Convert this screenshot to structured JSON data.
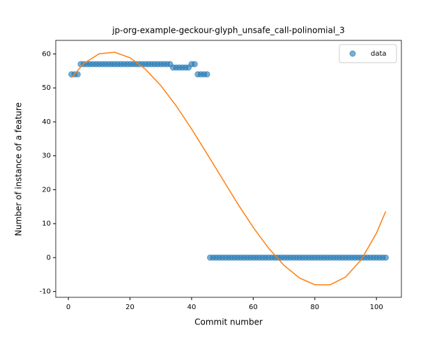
{
  "chart_data": {
    "type": "scatter",
    "title": "jp-org-example-geckour-glyph_unsafe_call-polinomial_3",
    "xlabel": "Commit number",
    "ylabel": "Number of instance of a feature",
    "xlim": [
      -4.1,
      108.1
    ],
    "ylim": [
      -11.7,
      64.0
    ],
    "xticks": [
      0,
      20,
      40,
      60,
      80,
      100
    ],
    "yticks": [
      -10,
      0,
      10,
      20,
      30,
      40,
      50,
      60
    ],
    "legend": "upper right",
    "series": [
      {
        "name": "data",
        "kind": "scatter",
        "color": "#1f77b4",
        "x": [
          1,
          2,
          3,
          4,
          5,
          6,
          7,
          8,
          9,
          10,
          11,
          12,
          13,
          14,
          15,
          16,
          17,
          18,
          19,
          20,
          21,
          22,
          23,
          24,
          25,
          26,
          27,
          28,
          29,
          30,
          31,
          32,
          33,
          34,
          35,
          36,
          37,
          38,
          39,
          40,
          41,
          42,
          43,
          44,
          45,
          46,
          47,
          48,
          49,
          50,
          51,
          52,
          53,
          54,
          55,
          56,
          57,
          58,
          59,
          60,
          61,
          62,
          63,
          64,
          65,
          66,
          67,
          68,
          69,
          70,
          71,
          72,
          73,
          74,
          75,
          76,
          77,
          78,
          79,
          80,
          81,
          82,
          83,
          84,
          85,
          86,
          87,
          88,
          89,
          90,
          91,
          92,
          93,
          94,
          95,
          96,
          97,
          98,
          99,
          100,
          101,
          102,
          103
        ],
        "values": [
          54,
          54,
          54,
          57,
          57,
          57,
          57,
          57,
          57,
          57,
          57,
          57,
          57,
          57,
          57,
          57,
          57,
          57,
          57,
          57,
          57,
          57,
          57,
          57,
          57,
          57,
          57,
          57,
          57,
          57,
          57,
          57,
          57,
          56,
          56,
          56,
          56,
          56,
          56,
          57,
          57,
          54,
          54,
          54,
          54,
          0,
          0,
          0,
          0,
          0,
          0,
          0,
          0,
          0,
          0,
          0,
          0,
          0,
          0,
          0,
          0,
          0,
          0,
          0,
          0,
          0,
          0,
          0,
          0,
          0,
          0,
          0,
          0,
          0,
          0,
          0,
          0,
          0,
          0,
          0,
          0,
          0,
          0,
          0,
          0,
          0,
          0,
          0,
          0,
          0,
          0,
          0,
          0,
          0,
          0,
          0,
          0,
          0,
          0,
          0,
          0,
          0,
          0
        ]
      },
      {
        "kind": "line",
        "color": "#ff7f0e",
        "x": [
          1,
          5,
          10,
          15,
          20,
          25,
          30,
          35,
          40,
          45,
          50,
          55,
          60,
          65,
          70,
          75,
          80,
          85,
          90,
          95,
          100,
          103
        ],
        "values": [
          53.0,
          57.2,
          60.05,
          60.5,
          58.9,
          55.5,
          50.7,
          44.7,
          37.9,
          30.6,
          23.2,
          15.8,
          8.9,
          2.75,
          -2.3,
          -6.0,
          -8.0,
          -8.0,
          -5.7,
          -0.7,
          7.2,
          13.6
        ]
      }
    ]
  }
}
